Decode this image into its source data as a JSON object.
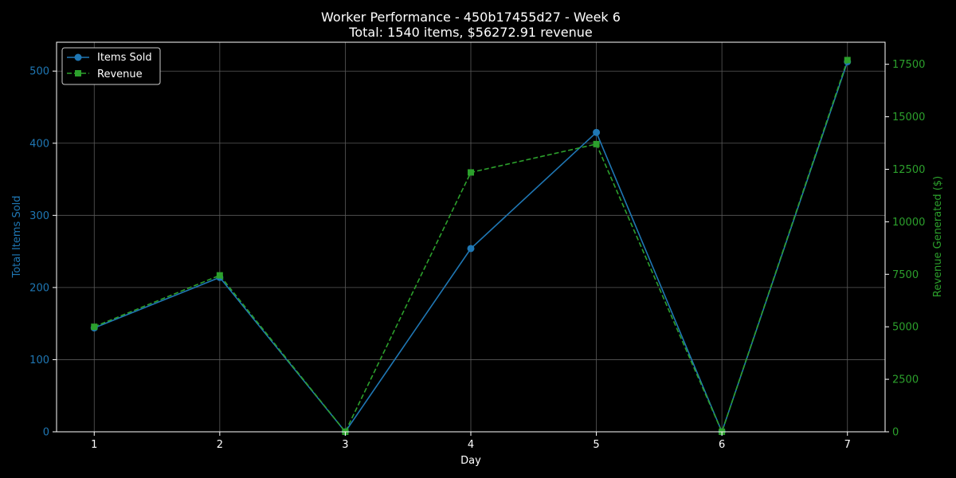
{
  "chart_data": {
    "type": "line",
    "title": "Worker Performance - 450b17455d27 - Week 6",
    "subtitle": "Total: 1540 items, $56272.91 revenue",
    "xlabel": "Day",
    "ylabel_left": "Total Items Sold",
    "ylabel_right": "Revenue Generated ($)",
    "x": [
      1,
      2,
      3,
      4,
      5,
      6,
      7
    ],
    "x_ticks": [
      "1",
      "2",
      "3",
      "4",
      "5",
      "6",
      "7"
    ],
    "xlim": [
      0.7,
      7.3
    ],
    "ylim_left": [
      0,
      540
    ],
    "ylim_right": [
      0,
      18550
    ],
    "yticks_left": [
      "0",
      "100",
      "200",
      "300",
      "400",
      "500"
    ],
    "yticks_right": [
      "0",
      "2500",
      "5000",
      "7500",
      "10000",
      "12500",
      "15000",
      "17500"
    ],
    "grid": true,
    "legend_position": "top-left",
    "series": [
      {
        "name": "Items Sold",
        "axis": "left",
        "color": "#1f77b4",
        "marker": "circle",
        "linestyle": "solid",
        "values": [
          144,
          214,
          0,
          254,
          415,
          0,
          513
        ]
      },
      {
        "name": "Revenue",
        "axis": "right",
        "color": "#2ca02c",
        "marker": "square",
        "linestyle": "dashed",
        "values": [
          5000,
          7450,
          0,
          12350,
          13700,
          0,
          17700
        ]
      }
    ]
  },
  "colors": {
    "background": "#000000",
    "foreground": "#ffffff",
    "grid": "#5a5a5a",
    "left_axis": "#1f77b4",
    "right_axis": "#2ca02c"
  }
}
